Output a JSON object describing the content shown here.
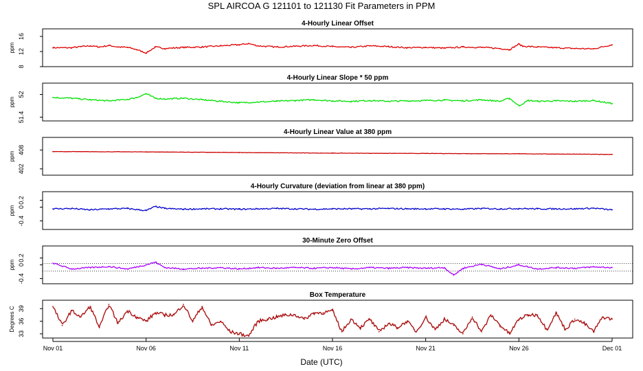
{
  "title": "SPL   AIRCOA G   121101 to 121130   Fit Parameters in PPM",
  "xlabel": "Date (UTC)",
  "x_range": [
    0,
    30
  ],
  "x_ticks": [
    {
      "day": 0,
      "label": "Nov 01"
    },
    {
      "day": 5,
      "label": "Nov 06"
    },
    {
      "day": 10,
      "label": "Nov 11"
    },
    {
      "day": 15,
      "label": "Nov 16"
    },
    {
      "day": 20,
      "label": "Nov 21"
    },
    {
      "day": 25,
      "label": "Nov 26"
    },
    {
      "day": 30,
      "label": "Dec 01"
    }
  ],
  "chart_data": [
    {
      "type": "line",
      "title": "4-Hourly Linear Offset",
      "ylabel": "ppm",
      "ylim": [
        8,
        18
      ],
      "yticks": [
        8,
        12,
        16
      ],
      "color": "#e00000",
      "x": [
        0,
        1,
        1.5,
        2,
        2.5,
        3,
        3.5,
        4,
        4.5,
        5,
        5.5,
        6,
        7,
        8,
        9,
        10,
        10.5,
        11,
        12,
        13,
        14,
        15,
        16,
        17,
        18,
        19,
        20,
        21,
        22,
        23,
        24,
        24.5,
        25,
        25.2,
        26,
        27,
        28,
        29,
        30
      ],
      "values": [
        13,
        13,
        13.3,
        13.5,
        13.2,
        13.6,
        13.2,
        13.1,
        12.5,
        11.6,
        13.2,
        12.8,
        13.1,
        13.2,
        13.5,
        13.8,
        14.1,
        13.5,
        13.2,
        13.4,
        13.6,
        13.3,
        13.1,
        13.5,
        13.3,
        13.0,
        13.1,
        12.9,
        13.2,
        13.1,
        12.8,
        12.5,
        14.0,
        13.4,
        13.2,
        13.0,
        12.8,
        12.7,
        13.8
      ]
    },
    {
      "type": "line",
      "title": "4-Hourly Linear Slope * 50 ppm",
      "ylabel": "ppm",
      "ylim": [
        51.3,
        52.3
      ],
      "yticks": [
        51.4,
        52.0
      ],
      "color": "#00e000",
      "x": [
        0,
        1,
        2,
        3,
        4,
        4.5,
        5,
        5.5,
        6,
        7,
        8,
        9,
        10,
        11,
        12,
        13,
        14,
        15,
        16,
        17,
        18,
        19,
        20,
        21,
        22,
        23,
        24,
        24.5,
        25,
        25.5,
        26,
        27,
        28,
        29,
        30
      ],
      "values": [
        51.92,
        51.9,
        51.86,
        51.83,
        51.87,
        51.92,
        52.02,
        51.9,
        51.88,
        51.9,
        51.86,
        51.82,
        51.78,
        51.8,
        51.82,
        51.84,
        51.86,
        51.83,
        51.82,
        51.84,
        51.82,
        51.83,
        51.84,
        51.85,
        51.83,
        51.86,
        51.82,
        51.9,
        51.7,
        51.84,
        51.82,
        51.83,
        51.82,
        51.84,
        51.76
      ]
    },
    {
      "type": "line",
      "title": "4-Hourly Linear Value at 380 ppm",
      "ylabel": "ppm",
      "ylim": [
        400,
        412
      ],
      "yticks": [
        402,
        408
      ],
      "color": "#cc0000",
      "x": [
        0,
        5,
        10,
        15,
        20,
        25,
        30
      ],
      "values": [
        407.5,
        407.4,
        407.2,
        407.0,
        406.9,
        406.8,
        406.6
      ]
    },
    {
      "type": "line",
      "title": "4-Hourly Curvature (deviation from linear at 380 ppm)",
      "ylabel": "ppm",
      "ylim": [
        -0.65,
        0.45
      ],
      "yticks": [
        -0.4,
        0,
        0.2
      ],
      "color": "#0000cc",
      "x": [
        0,
        1,
        2,
        3,
        4,
        5,
        5.5,
        6,
        7,
        8,
        9,
        10,
        11,
        12,
        13,
        14,
        15,
        16,
        17,
        18,
        19,
        20,
        21,
        22,
        23,
        24,
        25,
        26,
        27,
        28,
        29,
        30
      ],
      "values": [
        -0.05,
        -0.04,
        -0.08,
        -0.05,
        -0.04,
        -0.1,
        0.02,
        -0.04,
        -0.06,
        -0.05,
        -0.05,
        -0.06,
        -0.05,
        -0.04,
        -0.05,
        -0.06,
        -0.05,
        -0.05,
        -0.05,
        -0.04,
        -0.05,
        -0.05,
        -0.05,
        -0.06,
        -0.04,
        -0.05,
        -0.04,
        -0.05,
        -0.05,
        -0.05,
        -0.03,
        -0.08
      ]
    },
    {
      "type": "line",
      "title": "30-Minute Zero Offset",
      "ylabel": "ppm",
      "ylim": [
        -0.55,
        0.55
      ],
      "yticks": [
        -0.4,
        0,
        0.2
      ],
      "reference_lines": [
        0.04,
        -0.18
      ],
      "color": "#aa00ff",
      "x": [
        0,
        1,
        2,
        3,
        4,
        5,
        5.5,
        6,
        7,
        8,
        9,
        10,
        11,
        12,
        13,
        14,
        15,
        16,
        17,
        18,
        19,
        20,
        21,
        21.5,
        22,
        23,
        24,
        25,
        26,
        27,
        28,
        29,
        30
      ],
      "values": [
        0.05,
        -0.12,
        -0.08,
        -0.05,
        -0.12,
        0.0,
        0.08,
        -0.08,
        -0.12,
        -0.1,
        -0.08,
        -0.12,
        -0.08,
        -0.1,
        -0.08,
        -0.1,
        -0.08,
        -0.12,
        -0.08,
        -0.1,
        -0.08,
        -0.1,
        -0.08,
        -0.3,
        -0.1,
        0.02,
        -0.12,
        0.0,
        -0.12,
        -0.08,
        -0.1,
        -0.06,
        -0.08
      ]
    },
    {
      "type": "line",
      "title": "Box Temperature",
      "ylabel": "Degrees C",
      "ylim": [
        32,
        41
      ],
      "yticks": [
        33,
        36,
        39
      ],
      "color": "#aa1111",
      "x": [
        0,
        0.5,
        1,
        1.5,
        2,
        2.5,
        3,
        3.5,
        4,
        4.5,
        5,
        5.5,
        6,
        6.5,
        7,
        7.5,
        8,
        8.5,
        9,
        9.5,
        10,
        10.5,
        11,
        11.5,
        12,
        12.5,
        13,
        13.5,
        14,
        14.5,
        15,
        15.5,
        16,
        16.5,
        17,
        17.5,
        18,
        18.5,
        19,
        19.5,
        20,
        20.5,
        21,
        21.5,
        22,
        22.5,
        23,
        23.5,
        24,
        24.5,
        25,
        25.5,
        26,
        26.5,
        27,
        27.5,
        28,
        28.5,
        29,
        29.5,
        30
      ],
      "values": [
        39.5,
        35,
        38.5,
        37,
        39.5,
        34.5,
        40,
        35.5,
        38.5,
        37,
        36,
        38,
        37.5,
        37.5,
        40,
        36,
        39.5,
        35,
        36,
        33.5,
        33,
        32.5,
        36,
        36.5,
        37,
        37.5,
        37.5,
        36.5,
        38,
        38,
        38.5,
        33.5,
        36.5,
        34.5,
        36.5,
        33.5,
        35.5,
        34.5,
        36,
        33.5,
        37,
        34,
        36.5,
        35,
        33,
        37,
        33.5,
        37.5,
        35,
        33,
        36.5,
        37.5,
        37.5,
        34,
        38,
        34,
        36.5,
        35.5,
        33.5,
        37,
        36.5
      ]
    }
  ]
}
